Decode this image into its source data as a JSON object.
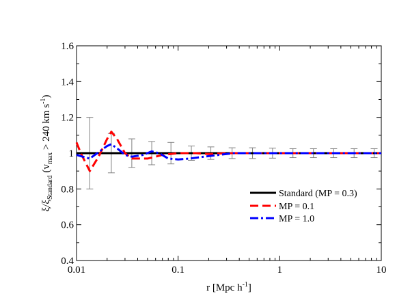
{
  "chart_data": {
    "type": "line",
    "xlabel": {
      "main": "r [Mpc h",
      "sup": "-1",
      "end": "]"
    },
    "ylabel": {
      "main": "ξ/ξ",
      "sub1": "Standard",
      "mid": " (v",
      "sub2": "max",
      "rest": " > 240 km s",
      "sup": "-1",
      "end": ")"
    },
    "xscale": "log",
    "xlim": [
      0.01,
      10
    ],
    "ylim": [
      0.4,
      1.6
    ],
    "x_ticks": [
      0.01,
      0.1,
      1,
      10
    ],
    "x_tick_labels": [
      "0.01",
      "0.1",
      "1",
      "10"
    ],
    "y_ticks": [
      0.4,
      0.6,
      0.8,
      1.0,
      1.2,
      1.4,
      1.6
    ],
    "y_tick_labels": [
      "0.4",
      "0.6",
      "0.8",
      "1",
      "1.2",
      "1.4",
      "1.6"
    ],
    "grid": false,
    "legend_placement": "center-right",
    "series": [
      {
        "name": "Standard (MP = 0.3)",
        "color": "#000000",
        "style": "solid",
        "x": [
          0.01,
          10
        ],
        "y": [
          1.0,
          1.0
        ]
      },
      {
        "name": "MP = 0.1",
        "color": "#ff0000",
        "style": "dashed",
        "x": [
          0.01,
          0.011,
          0.0135,
          0.0165,
          0.02,
          0.022,
          0.025,
          0.03,
          0.035,
          0.04,
          0.05,
          0.06,
          0.07,
          0.1,
          0.15,
          0.2,
          0.3,
          0.5,
          1,
          2,
          5,
          10
        ],
        "y": [
          1.06,
          1.0,
          0.9,
          0.98,
          1.08,
          1.12,
          1.08,
          1.0,
          0.97,
          0.97,
          0.97,
          0.98,
          0.99,
          1.0,
          1.0,
          0.995,
          1.0,
          1.0,
          1.0,
          1.0,
          1.0,
          1.0
        ]
      },
      {
        "name": "MP = 1.0",
        "color": "#0000ff",
        "style": "dashdot",
        "x": [
          0.01,
          0.0115,
          0.0135,
          0.016,
          0.02,
          0.022,
          0.026,
          0.03,
          0.035,
          0.045,
          0.055,
          0.065,
          0.08,
          0.1,
          0.13,
          0.18,
          0.25,
          0.35,
          0.5,
          1,
          2,
          5,
          10
        ],
        "y": [
          0.99,
          0.98,
          0.97,
          1.0,
          1.04,
          1.05,
          1.02,
          0.99,
          0.98,
          0.99,
          1.01,
          1.0,
          0.97,
          0.965,
          0.97,
          0.98,
          0.99,
          1.0,
          1.0,
          1.0,
          1.0,
          1.0,
          1.0
        ]
      }
    ],
    "error_bars": {
      "color": "#808080",
      "x": [
        0.0135,
        0.022,
        0.035,
        0.055,
        0.085,
        0.135,
        0.21,
        0.34,
        0.54,
        0.85,
        1.35,
        2.15,
        3.4,
        5.4,
        8.5
      ],
      "y": [
        1.0,
        1.0,
        1.0,
        1.0,
        1.0,
        1.0,
        1.0,
        1.0,
        1.0,
        1.0,
        1.0,
        1.0,
        1.0,
        1.0,
        1.0
      ],
      "err": [
        0.2,
        0.11,
        0.08,
        0.065,
        0.06,
        0.04,
        0.035,
        0.03,
        0.03,
        0.028,
        0.025,
        0.025,
        0.025,
        0.025,
        0.025
      ]
    }
  }
}
